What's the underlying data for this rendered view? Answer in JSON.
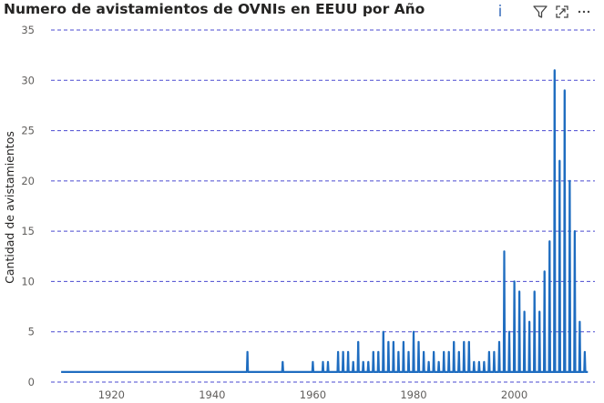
{
  "visual": {
    "title": "Numero de avistamientos de OVNIs en EEUU por Año",
    "icons": {
      "info": "info-icon",
      "filter": "filter-icon",
      "focus": "focus-mode-icon",
      "more": "more-options-icon"
    },
    "info_glyph": "i"
  },
  "colors": {
    "series": "#1f6dc0",
    "grid": "#4a4ad0",
    "text": "#605e5c",
    "title": "#252423"
  },
  "chart_data": {
    "type": "line",
    "title": "Numero de avistamientos de OVNIs en EEUU por Año",
    "xlabel": "",
    "ylabel": "Cantidad de avistamientos",
    "xlim": [
      1908,
      2016
    ],
    "ylim": [
      0,
      35
    ],
    "x_ticks": [
      1920,
      1940,
      1960,
      1980,
      2000
    ],
    "y_ticks": [
      0,
      5,
      10,
      15,
      20,
      25,
      30,
      35
    ],
    "grid": "horizontal dashed",
    "legend": "none",
    "baseline": 1,
    "series": [
      {
        "spikes": [
          [
            1947,
            3
          ],
          [
            1954,
            2
          ],
          [
            1960,
            2
          ],
          [
            1962,
            2
          ],
          [
            1963,
            2
          ],
          [
            1965,
            3
          ],
          [
            1966,
            3
          ],
          [
            1967,
            3
          ],
          [
            1968,
            2
          ],
          [
            1969,
            4
          ],
          [
            1970,
            2
          ],
          [
            1971,
            2
          ],
          [
            1972,
            3
          ],
          [
            1973,
            3
          ],
          [
            1974,
            5
          ],
          [
            1975,
            4
          ],
          [
            1976,
            4
          ],
          [
            1977,
            3
          ],
          [
            1978,
            4
          ],
          [
            1979,
            3
          ],
          [
            1980,
            5
          ],
          [
            1981,
            4
          ],
          [
            1982,
            3
          ],
          [
            1983,
            2
          ],
          [
            1984,
            3
          ],
          [
            1985,
            2
          ],
          [
            1986,
            3
          ],
          [
            1987,
            3
          ],
          [
            1988,
            4
          ],
          [
            1989,
            3
          ],
          [
            1990,
            4
          ],
          [
            1991,
            4
          ],
          [
            1992,
            2
          ],
          [
            1993,
            2
          ],
          [
            1994,
            2
          ],
          [
            1995,
            3
          ],
          [
            1996,
            3
          ],
          [
            1997,
            4
          ],
          [
            1998,
            13
          ],
          [
            1999,
            5
          ],
          [
            2000,
            10
          ],
          [
            2001,
            9
          ],
          [
            2002,
            7
          ],
          [
            2003,
            6
          ],
          [
            2004,
            9
          ],
          [
            2005,
            7
          ],
          [
            2006,
            11
          ],
          [
            2007,
            14
          ],
          [
            2008,
            31
          ],
          [
            2009,
            22
          ],
          [
            2010,
            29
          ],
          [
            2011,
            20
          ],
          [
            2012,
            15
          ],
          [
            2013,
            6
          ],
          [
            2014,
            3
          ]
        ]
      }
    ]
  }
}
